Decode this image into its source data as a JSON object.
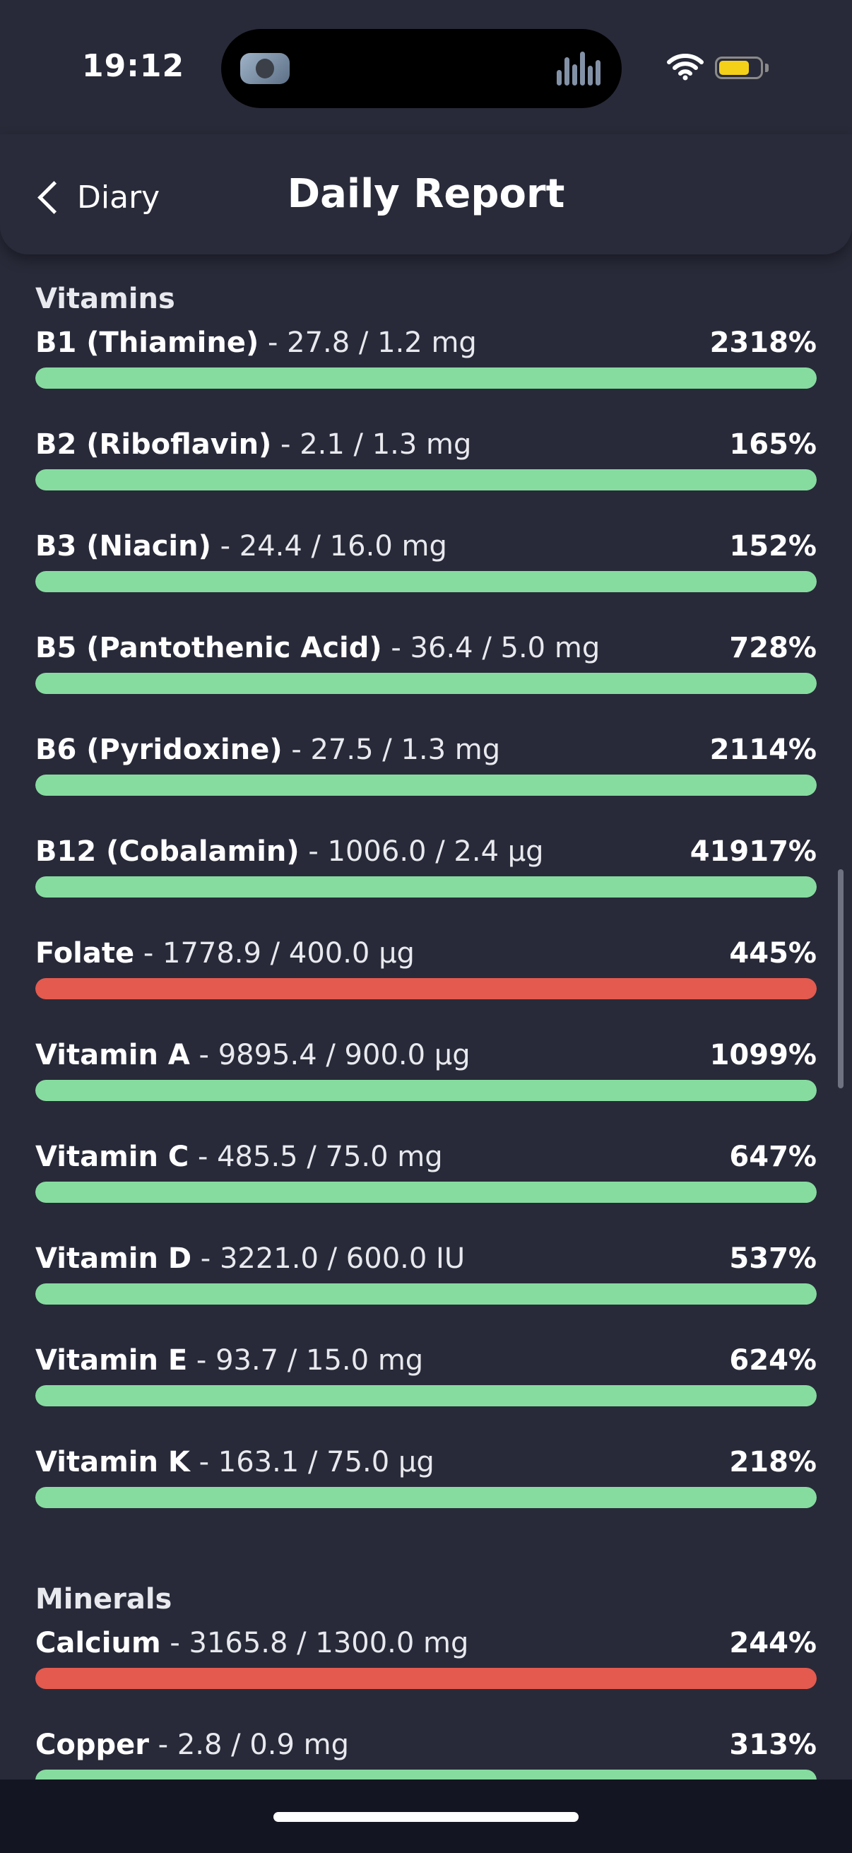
{
  "status_bar": {
    "time": "19:12"
  },
  "header": {
    "back_label": "Diary",
    "title": "Daily Report"
  },
  "colors": {
    "ok": "#86dc9f",
    "warn": "#e45a4e",
    "background": "#282a39"
  },
  "sections": [
    {
      "title": "Vitamins",
      "items": [
        {
          "name": "B1 (Thiamine)",
          "amount": " - 27.8 / 1.2 mg",
          "percent": "2318%",
          "status": "ok"
        },
        {
          "name": "B2 (Riboflavin)",
          "amount": " - 2.1 / 1.3 mg",
          "percent": "165%",
          "status": "ok"
        },
        {
          "name": "B3 (Niacin)",
          "amount": " - 24.4 / 16.0 mg",
          "percent": "152%",
          "status": "ok"
        },
        {
          "name": "B5 (Pantothenic Acid)",
          "amount": " - 36.4 / 5.0 mg",
          "percent": "728%",
          "status": "ok"
        },
        {
          "name": "B6 (Pyridoxine)",
          "amount": " - 27.5 / 1.3 mg",
          "percent": "2114%",
          "status": "ok"
        },
        {
          "name": "B12 (Cobalamin)",
          "amount": " - 1006.0 / 2.4 µg",
          "percent": "41917%",
          "status": "ok"
        },
        {
          "name": "Folate",
          "amount": " - 1778.9 / 400.0 µg",
          "percent": "445%",
          "status": "warn"
        },
        {
          "name": "Vitamin A",
          "amount": " - 9895.4 / 900.0 µg",
          "percent": "1099%",
          "status": "ok"
        },
        {
          "name": "Vitamin C",
          "amount": " - 485.5 / 75.0 mg",
          "percent": "647%",
          "status": "ok"
        },
        {
          "name": "Vitamin D",
          "amount": " - 3221.0 / 600.0 IU",
          "percent": "537%",
          "status": "ok"
        },
        {
          "name": "Vitamin E",
          "amount": " - 93.7 / 15.0 mg",
          "percent": "624%",
          "status": "ok"
        },
        {
          "name": "Vitamin K",
          "amount": " - 163.1 / 75.0 µg",
          "percent": "218%",
          "status": "ok"
        }
      ]
    },
    {
      "title": "Minerals",
      "items": [
        {
          "name": "Calcium",
          "amount": " - 3165.8 / 1300.0 mg",
          "percent": "244%",
          "status": "warn"
        },
        {
          "name": "Copper",
          "amount": " - 2.8 / 0.9 mg",
          "percent": "313%",
          "status": "ok"
        }
      ]
    }
  ]
}
